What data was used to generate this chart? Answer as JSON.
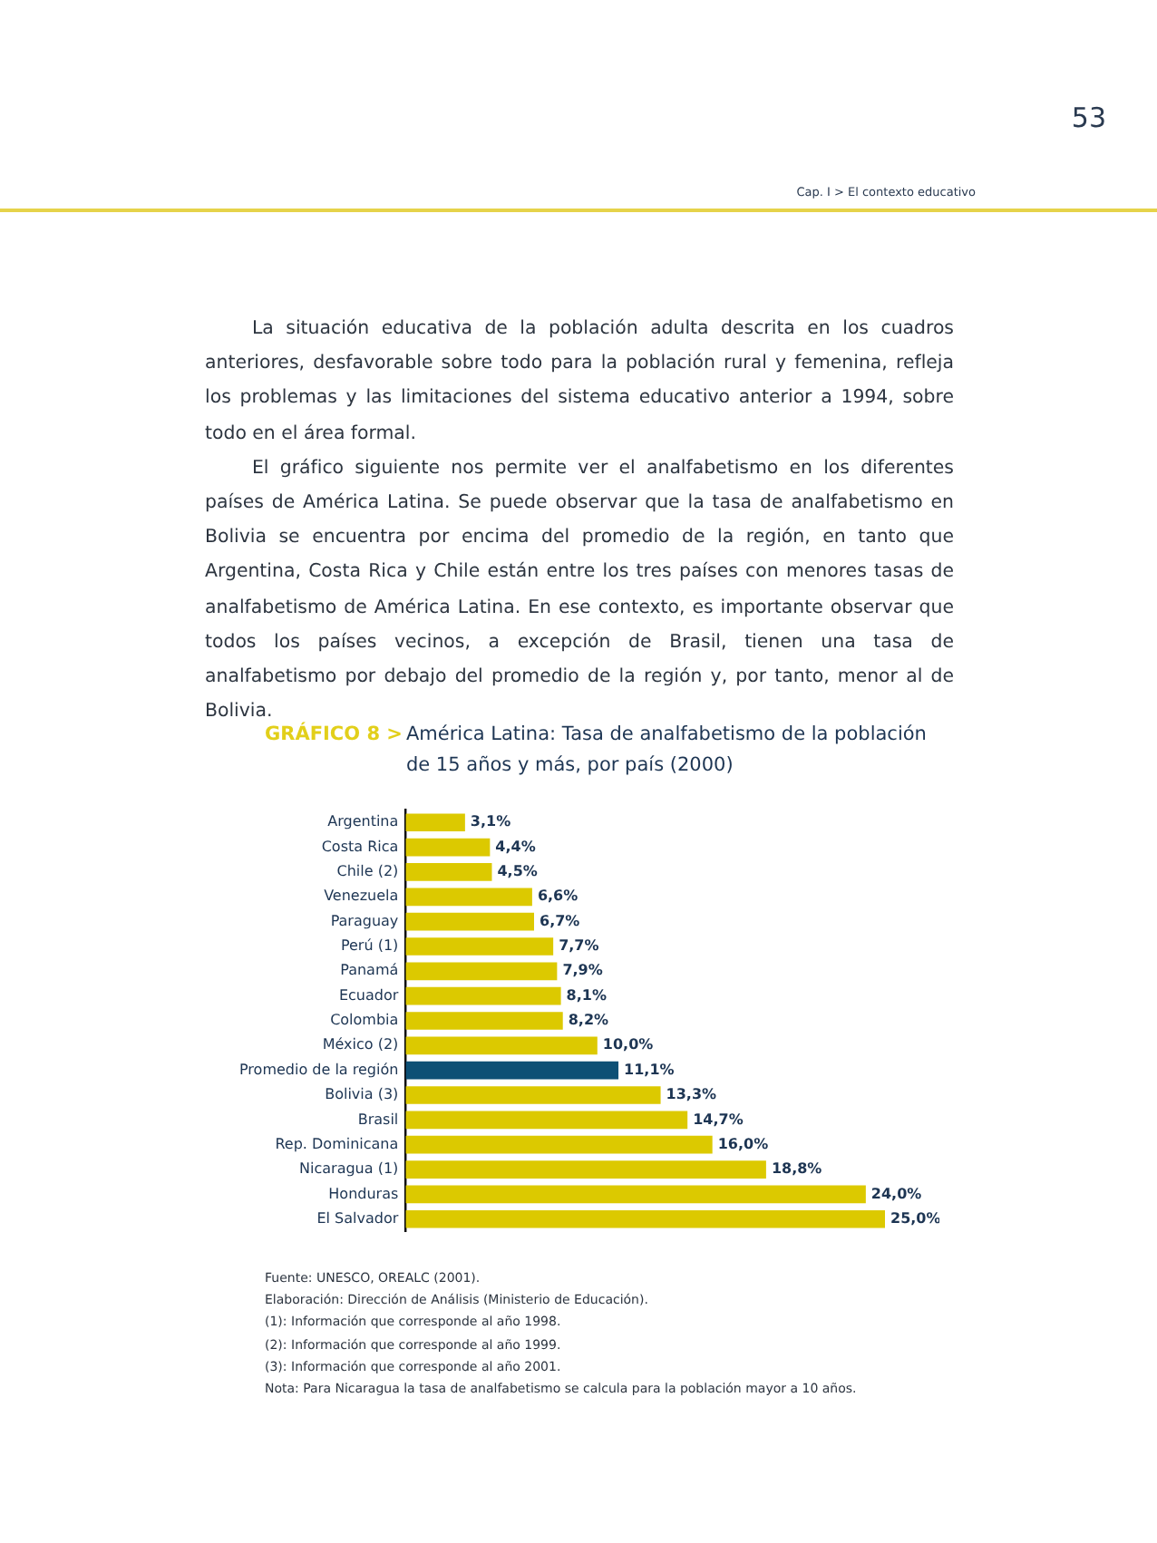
{
  "chart_data": {
    "type": "bar",
    "orientation": "horizontal",
    "title": "GRÁFICO 8 >",
    "subtitle": "América Latina: Tasa de analfabetismo de la población de 15 años y más, por país (2000)",
    "categories": [
      "Argentina",
      "Costa Rica",
      "Chile (2)",
      "Venezuela",
      "Paraguay",
      "Perú (1)",
      "Panamá",
      "Ecuador",
      "Colombia",
      "México (2)",
      "Promedio de la región",
      "Bolivia (3)",
      "Brasil",
      "Rep. Dominicana",
      "Nicaragua (1)",
      "Honduras",
      "El Salvador"
    ],
    "values": [
      3.1,
      4.4,
      4.5,
      6.6,
      6.7,
      7.7,
      7.9,
      8.1,
      8.2,
      10.0,
      11.1,
      13.3,
      14.7,
      16.0,
      18.8,
      24.0,
      25.0
    ],
    "value_labels": [
      "3,1%",
      "4,4%",
      "4,5%",
      "6,6%",
      "6,7%",
      "7,7%",
      "7,9%",
      "8,1%",
      "8,2%",
      "10,0%",
      "11,1%",
      "13,3%",
      "14,7%",
      "16,0%",
      "18,8%",
      "24,0%",
      "25,0%"
    ],
    "colors": [
      "#dcc900",
      "#dcc900",
      "#dcc900",
      "#dcc900",
      "#dcc900",
      "#dcc900",
      "#dcc900",
      "#dcc900",
      "#dcc900",
      "#dcc900",
      "#0d5075",
      "#dcc900",
      "#dcc900",
      "#dcc900",
      "#dcc900",
      "#dcc900",
      "#dcc900"
    ],
    "legend": false,
    "annotations": [
      "53",
      "Cap. I > El contexto educativo",
      "La situación educativa de la población adulta descrita en los cuadros anteriores, desfavorable sobre todo para la población rural y femenina, refleja los problemas y las limitaciones del sistema educativo anterior a 1994, sobre todo en el área formal.",
      "El gráfico siguiente nos permite ver el analfabetismo en los diferentes países de América Latina. Se puede observar que la tasa de analfabetismo en Bolivia se encuentra por encima del promedio de la región, en tanto que Argentina, Costa Rica y Chile están entre los tres países con menores tasas de analfabetismo de América Latina. En ese contexto, es importante observar que todos los países vecinos, a excepción de Brasil, tienen una tasa de analfabetismo por debajo del promedio de la región y, por tanto, menor al de Bolivia.",
      "Fuente: UNESCO, OREALC (2001).",
      "Elaboración: Dirección de Análisis (Ministerio de Educación).",
      "(1): Información que corresponde al año 1998.",
      "(2): Información que corresponde al año 1999.",
      "(3): Información que corresponde al año 2001.",
      "Nota: Para Nicaragua la tasa de analfabetismo se calcula para la población mayor a 10 años."
    ]
  }
}
